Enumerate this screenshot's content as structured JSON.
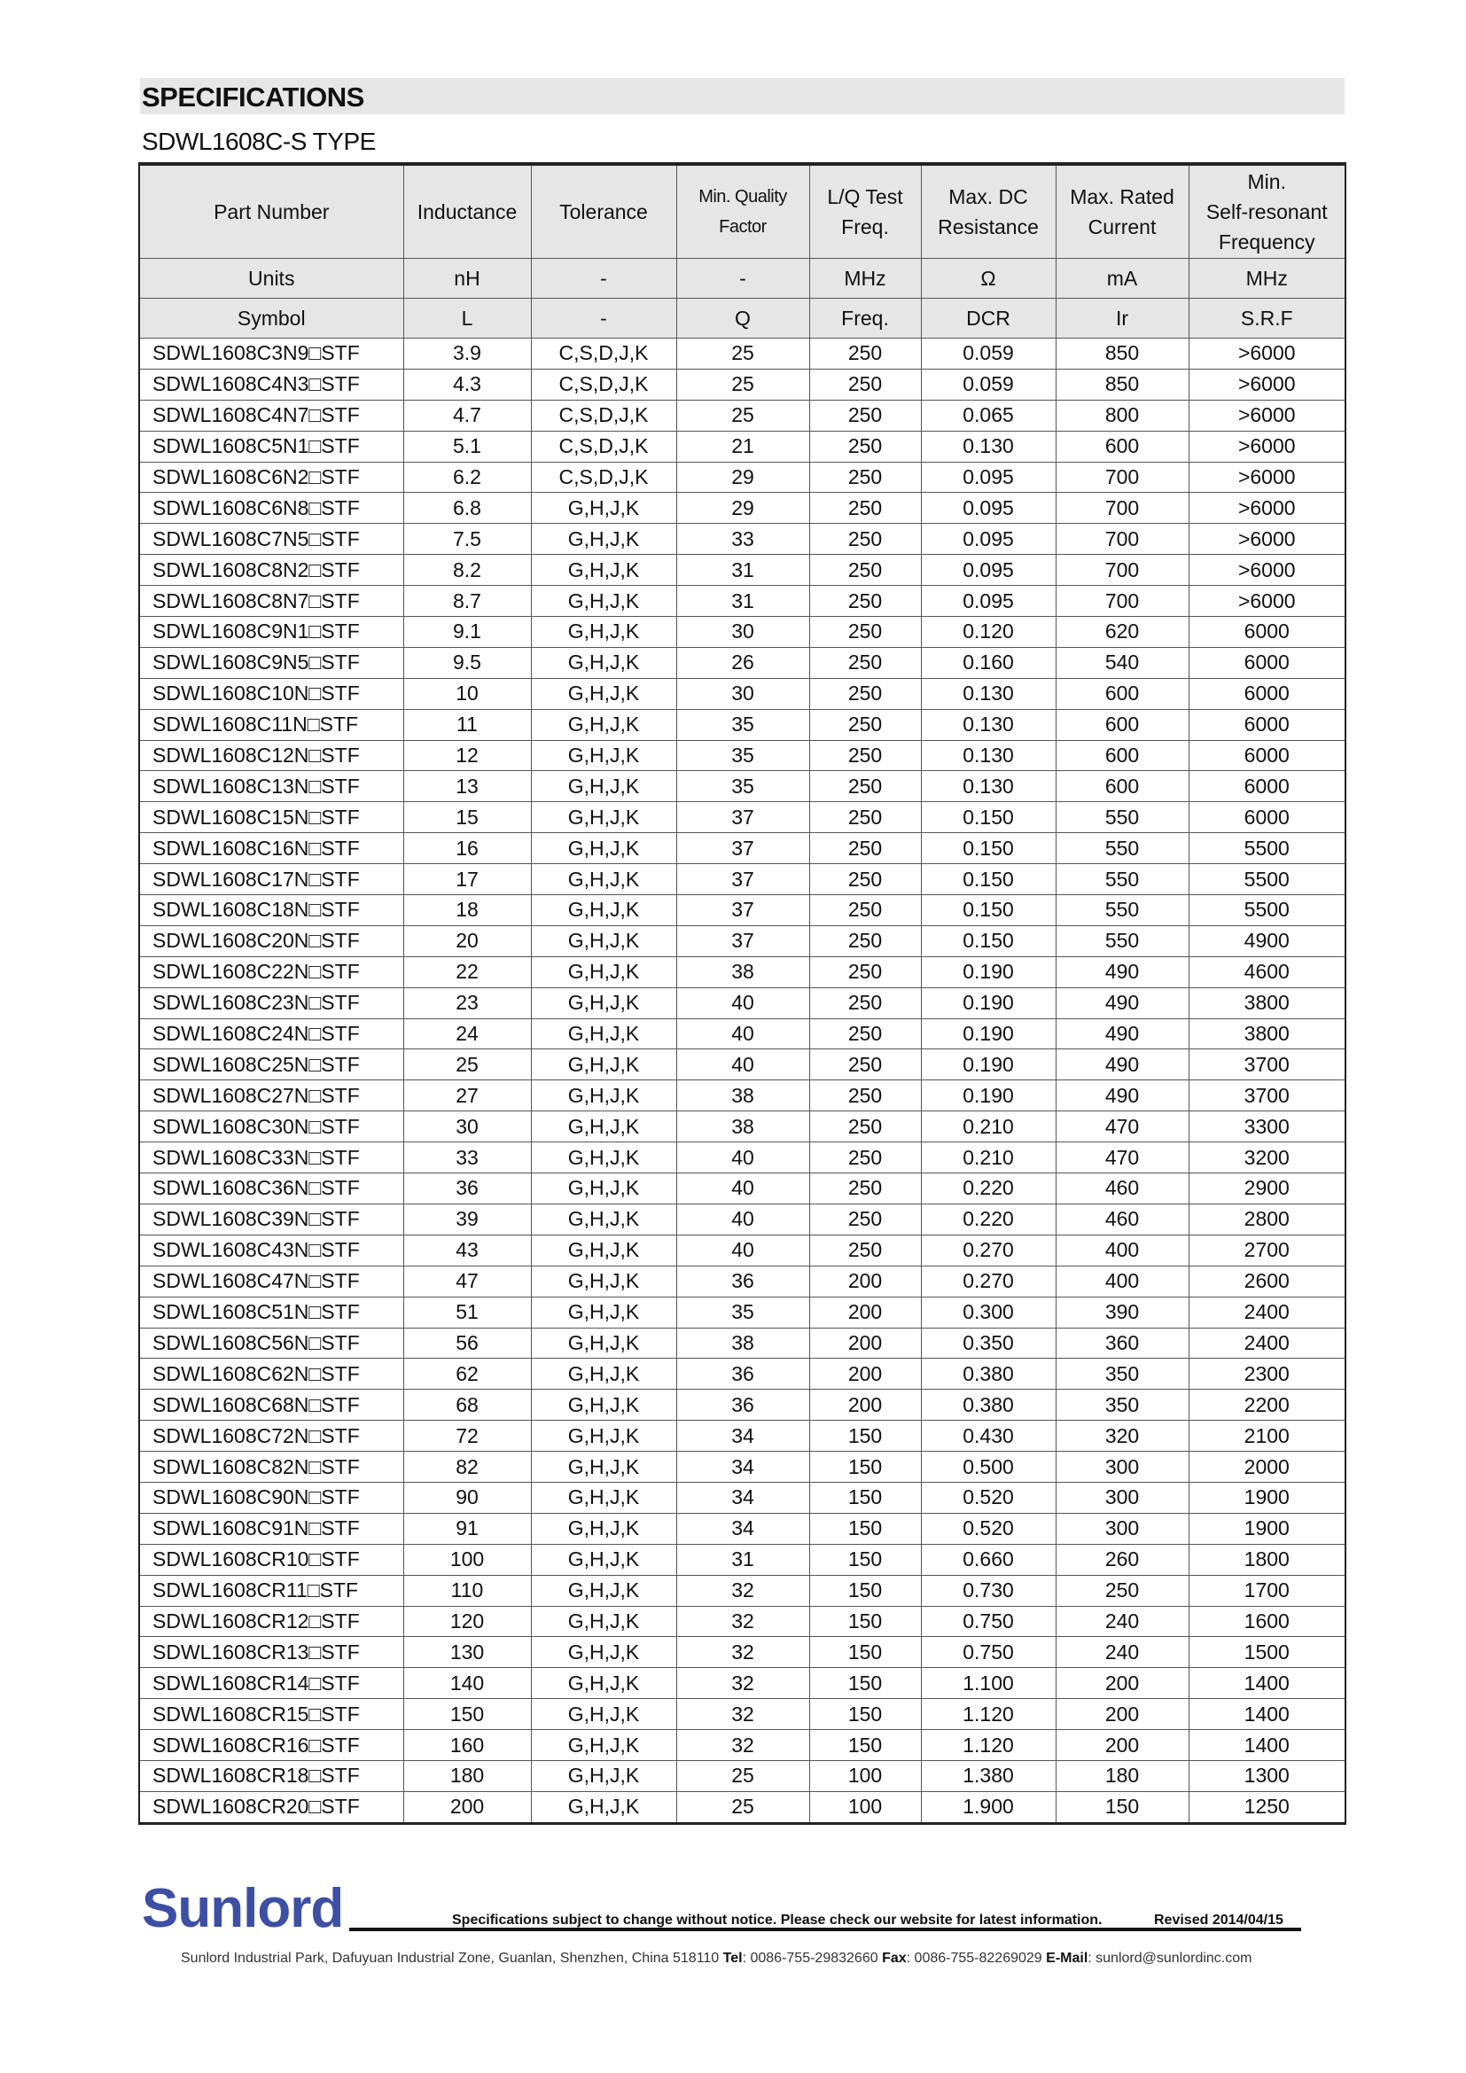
{
  "header": {
    "title": "SPECIFICATIONS",
    "subtitle": "SDWL1608C-S TYPE"
  },
  "table": {
    "columns": [
      "Part Number",
      "Inductance",
      "Tolerance",
      "Min. Quality\nFactor",
      "L/Q Test\nFreq.",
      "Max. DC\nResistance",
      "Max. Rated\nCurrent",
      "Min.\nSelf-resonant\nFrequency"
    ],
    "units": [
      "Units",
      "nH",
      "-",
      "-",
      "MHz",
      "Ω",
      "mA",
      "MHz"
    ],
    "symbols": [
      "Symbol",
      "L",
      "-",
      "Q",
      "Freq.",
      "DCR",
      "Ir",
      "S.R.F"
    ],
    "rows": [
      [
        "SDWL1608C3N9□STF",
        "3.9",
        "C,S,D,J,K",
        "25",
        "250",
        "0.059",
        "850",
        ">6000"
      ],
      [
        "SDWL1608C4N3□STF",
        "4.3",
        "C,S,D,J,K",
        "25",
        "250",
        "0.059",
        "850",
        ">6000"
      ],
      [
        "SDWL1608C4N7□STF",
        "4.7",
        "C,S,D,J,K",
        "25",
        "250",
        "0.065",
        "800",
        ">6000"
      ],
      [
        "SDWL1608C5N1□STF",
        "5.1",
        "C,S,D,J,K",
        "21",
        "250",
        "0.130",
        "600",
        ">6000"
      ],
      [
        "SDWL1608C6N2□STF",
        "6.2",
        "C,S,D,J,K",
        "29",
        "250",
        "0.095",
        "700",
        ">6000"
      ],
      [
        "SDWL1608C6N8□STF",
        "6.8",
        "G,H,J,K",
        "29",
        "250",
        "0.095",
        "700",
        ">6000"
      ],
      [
        "SDWL1608C7N5□STF",
        "7.5",
        "G,H,J,K",
        "33",
        "250",
        "0.095",
        "700",
        ">6000"
      ],
      [
        "SDWL1608C8N2□STF",
        "8.2",
        "G,H,J,K",
        "31",
        "250",
        "0.095",
        "700",
        ">6000"
      ],
      [
        "SDWL1608C8N7□STF",
        "8.7",
        "G,H,J,K",
        "31",
        "250",
        "0.095",
        "700",
        ">6000"
      ],
      [
        "SDWL1608C9N1□STF",
        "9.1",
        "G,H,J,K",
        "30",
        "250",
        "0.120",
        "620",
        "6000"
      ],
      [
        "SDWL1608C9N5□STF",
        "9.5",
        "G,H,J,K",
        "26",
        "250",
        "0.160",
        "540",
        "6000"
      ],
      [
        "SDWL1608C10N□STF",
        "10",
        "G,H,J,K",
        "30",
        "250",
        "0.130",
        "600",
        "6000"
      ],
      [
        "SDWL1608C11N□STF",
        "11",
        "G,H,J,K",
        "35",
        "250",
        "0.130",
        "600",
        "6000"
      ],
      [
        "SDWL1608C12N□STF",
        "12",
        "G,H,J,K",
        "35",
        "250",
        "0.130",
        "600",
        "6000"
      ],
      [
        "SDWL1608C13N□STF",
        "13",
        "G,H,J,K",
        "35",
        "250",
        "0.130",
        "600",
        "6000"
      ],
      [
        "SDWL1608C15N□STF",
        "15",
        "G,H,J,K",
        "37",
        "250",
        "0.150",
        "550",
        "6000"
      ],
      [
        "SDWL1608C16N□STF",
        "16",
        "G,H,J,K",
        "37",
        "250",
        "0.150",
        "550",
        "5500"
      ],
      [
        "SDWL1608C17N□STF",
        "17",
        "G,H,J,K",
        "37",
        "250",
        "0.150",
        "550",
        "5500"
      ],
      [
        "SDWL1608C18N□STF",
        "18",
        "G,H,J,K",
        "37",
        "250",
        "0.150",
        "550",
        "5500"
      ],
      [
        "SDWL1608C20N□STF",
        "20",
        "G,H,J,K",
        "37",
        "250",
        "0.150",
        "550",
        "4900"
      ],
      [
        "SDWL1608C22N□STF",
        "22",
        "G,H,J,K",
        "38",
        "250",
        "0.190",
        "490",
        "4600"
      ],
      [
        "SDWL1608C23N□STF",
        "23",
        "G,H,J,K",
        "40",
        "250",
        "0.190",
        "490",
        "3800"
      ],
      [
        "SDWL1608C24N□STF",
        "24",
        "G,H,J,K",
        "40",
        "250",
        "0.190",
        "490",
        "3800"
      ],
      [
        "SDWL1608C25N□STF",
        "25",
        "G,H,J,K",
        "40",
        "250",
        "0.190",
        "490",
        "3700"
      ],
      [
        "SDWL1608C27N□STF",
        "27",
        "G,H,J,K",
        "38",
        "250",
        "0.190",
        "490",
        "3700"
      ],
      [
        "SDWL1608C30N□STF",
        "30",
        "G,H,J,K",
        "38",
        "250",
        "0.210",
        "470",
        "3300"
      ],
      [
        "SDWL1608C33N□STF",
        "33",
        "G,H,J,K",
        "40",
        "250",
        "0.210",
        "470",
        "3200"
      ],
      [
        "SDWL1608C36N□STF",
        "36",
        "G,H,J,K",
        "40",
        "250",
        "0.220",
        "460",
        "2900"
      ],
      [
        "SDWL1608C39N□STF",
        "39",
        "G,H,J,K",
        "40",
        "250",
        "0.220",
        "460",
        "2800"
      ],
      [
        "SDWL1608C43N□STF",
        "43",
        "G,H,J,K",
        "40",
        "250",
        "0.270",
        "400",
        "2700"
      ],
      [
        "SDWL1608C47N□STF",
        "47",
        "G,H,J,K",
        "36",
        "200",
        "0.270",
        "400",
        "2600"
      ],
      [
        "SDWL1608C51N□STF",
        "51",
        "G,H,J,K",
        "35",
        "200",
        "0.300",
        "390",
        "2400"
      ],
      [
        "SDWL1608C56N□STF",
        "56",
        "G,H,J,K",
        "38",
        "200",
        "0.350",
        "360",
        "2400"
      ],
      [
        "SDWL1608C62N□STF",
        "62",
        "G,H,J,K",
        "36",
        "200",
        "0.380",
        "350",
        "2300"
      ],
      [
        "SDWL1608C68N□STF",
        "68",
        "G,H,J,K",
        "36",
        "200",
        "0.380",
        "350",
        "2200"
      ],
      [
        "SDWL1608C72N□STF",
        "72",
        "G,H,J,K",
        "34",
        "150",
        "0.430",
        "320",
        "2100"
      ],
      [
        "SDWL1608C82N□STF",
        "82",
        "G,H,J,K",
        "34",
        "150",
        "0.500",
        "300",
        "2000"
      ],
      [
        "SDWL1608C90N□STF",
        "90",
        "G,H,J,K",
        "34",
        "150",
        "0.520",
        "300",
        "1900"
      ],
      [
        "SDWL1608C91N□STF",
        "91",
        "G,H,J,K",
        "34",
        "150",
        "0.520",
        "300",
        "1900"
      ],
      [
        "SDWL1608CR10□STF",
        "100",
        "G,H,J,K",
        "31",
        "150",
        "0.660",
        "260",
        "1800"
      ],
      [
        "SDWL1608CR11□STF",
        "110",
        "G,H,J,K",
        "32",
        "150",
        "0.730",
        "250",
        "1700"
      ],
      [
        "SDWL1608CR12□STF",
        "120",
        "G,H,J,K",
        "32",
        "150",
        "0.750",
        "240",
        "1600"
      ],
      [
        "SDWL1608CR13□STF",
        "130",
        "G,H,J,K",
        "32",
        "150",
        "0.750",
        "240",
        "1500"
      ],
      [
        "SDWL1608CR14□STF",
        "140",
        "G,H,J,K",
        "32",
        "150",
        "1.100",
        "200",
        "1400"
      ],
      [
        "SDWL1608CR15□STF",
        "150",
        "G,H,J,K",
        "32",
        "150",
        "1.120",
        "200",
        "1400"
      ],
      [
        "SDWL1608CR16□STF",
        "160",
        "G,H,J,K",
        "32",
        "150",
        "1.120",
        "200",
        "1400"
      ],
      [
        "SDWL1608CR18□STF",
        "180",
        "G,H,J,K",
        "25",
        "100",
        "1.380",
        "180",
        "1300"
      ],
      [
        "SDWL1608CR20□STF",
        "200",
        "G,H,J,K",
        "25",
        "100",
        "1.900",
        "150",
        "1250"
      ]
    ]
  },
  "footer": {
    "logo": "Sunlord",
    "notice": "Specifications subject to change without notice. Please check our website for latest information.",
    "revised": "Revised 2014/04/15",
    "address": "Sunlord Industrial Park, Dafuyuan Industrial Zone, Guanlan, Shenzhen, China 518110",
    "tel_label": "Tel",
    "tel": ": 0086-755-29832660",
    "fax_label": "Fax",
    "fax": ": 0086-755-82269029",
    "email_label": "E-Mail",
    "email": ": sunlord@sunlordinc.com",
    "logo_color": "#3d4fa3",
    "header_bg": "#e6e6e6"
  }
}
